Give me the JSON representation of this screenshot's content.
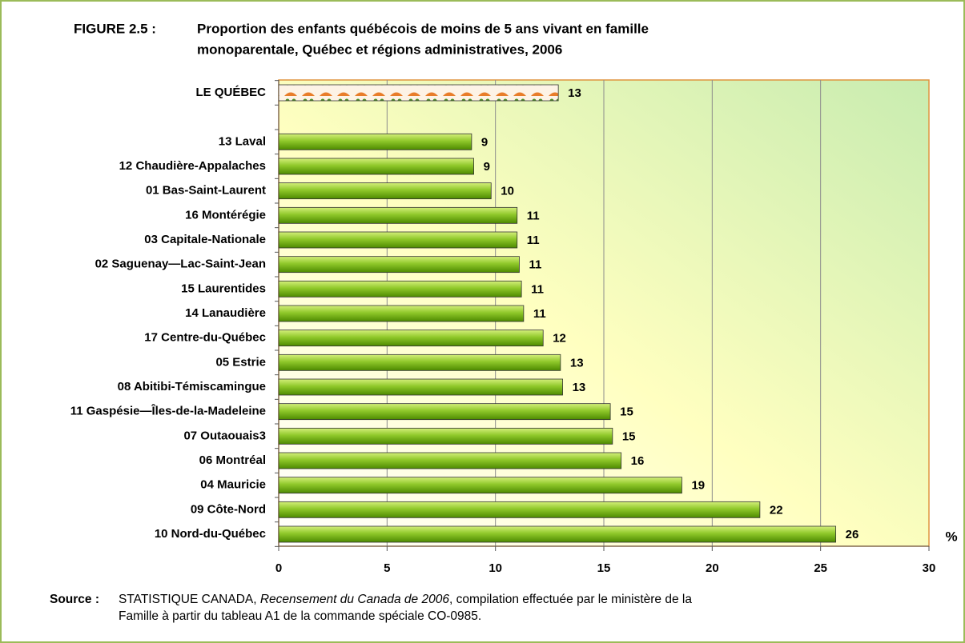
{
  "chart_data": {
    "type": "hbar",
    "figure_label": "FIGURE 2.5 :",
    "title": [
      "Proportion des enfants québécois de moins de 5 ans vivant en famille",
      "monoparentale, Québec et régions administratives, 2006"
    ],
    "categories": [
      "LE QUÉBEC",
      null,
      "13 Laval",
      "12 Chaudière-Appalaches",
      "01 Bas-Saint-Laurent",
      "16 Montérégie",
      "03 Capitale-Nationale",
      "02 Saguenay—Lac-Saint-Jean",
      "15 Laurentides",
      "14 Lanaudière",
      "17 Centre-du-Québec",
      "05 Estrie",
      "08 Abitibi-Témiscamingue",
      "11 Gaspésie—Îles-de-la-Madeleine",
      "07 Outaouais3",
      "06 Montréal",
      "04 Mauricie",
      "09 Côte-Nord",
      "10 Nord-du-Québec"
    ],
    "values": [
      12.9,
      null,
      8.9,
      9.0,
      9.8,
      11.0,
      11.0,
      11.1,
      11.2,
      11.3,
      12.2,
      13.0,
      13.1,
      15.3,
      15.4,
      15.8,
      18.6,
      22.2,
      25.7
    ],
    "value_labels": [
      "13",
      null,
      "9",
      "9",
      "10",
      "11",
      "11",
      "11",
      "11",
      "11",
      "12",
      "13",
      "13",
      "15",
      "15",
      "16",
      "19",
      "22",
      "26"
    ],
    "color": "#76b82a",
    "patterned_categories": [
      0
    ],
    "x_unit": "%",
    "xlim": [
      0,
      30
    ],
    "xticks": [
      0,
      5,
      10,
      15,
      20,
      25,
      30
    ],
    "grid": true,
    "source_label": "Source :",
    "source": [
      "STATISTIQUE CANADA, ",
      "Recensement du Canada de 2006",
      ", compilation effectuée par le ministère de la",
      "Famille à partir du tableau A1 de la commande spéciale CO-0985."
    ]
  }
}
